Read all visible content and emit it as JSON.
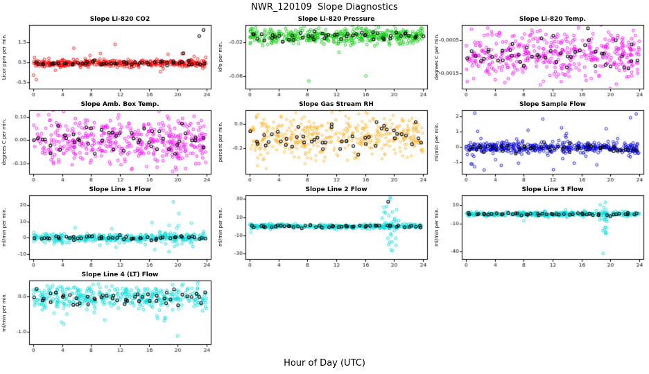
{
  "chart_data": {
    "type": "scatter",
    "title": "NWR_120109  Slope Diagnostics",
    "xlabel": "Hour of Day (UTC)",
    "x_ticks": [
      0,
      4,
      8,
      12,
      16,
      20,
      24
    ],
    "xlim": [
      -0.6,
      24.6
    ],
    "grid": false,
    "legend": "none",
    "marker_style": "open-circle, colored series with black overlay circles",
    "panels": [
      {
        "title": "Slope Li-820 CO2",
        "ylabel": "Licor ppm per min.",
        "color": "#ff0000",
        "ylim": [
          -0.8,
          2.35
        ],
        "ytick_vals": [
          -0.5,
          0.5,
          1.5
        ],
        "ytick_labels": [
          "-0.5",
          "0.5",
          "1.5"
        ],
        "n": 380,
        "center": 0.45,
        "spread": 0.09,
        "outlier_frac": 0.06,
        "outlier_spread": 0.3,
        "black_n": 48,
        "black_spread": 0.06,
        "outliers": [
          [
            21.5,
            0.55
          ],
          [
            23.9,
            0.75
          ],
          [
            0.4,
            -0.35
          ]
        ],
        "black_outliers": [
          [
            20.8,
            0.95
          ],
          [
            23.0,
            1.8
          ],
          [
            23.6,
            2.1
          ]
        ],
        "seed": 11
      },
      {
        "title": "Slope Li-820 Pressure",
        "ylabel": "kPa per min.",
        "color": "#00c800",
        "ylim": [
          -0.075,
          0.0
        ],
        "ytick_vals": [
          -0.06,
          -0.02
        ],
        "ytick_labels": [
          "-0.06",
          "-0.02"
        ],
        "n": 400,
        "center": -0.013,
        "spread": 0.0045,
        "outlier_frac": 0.04,
        "outlier_spread": 0.01,
        "black_n": 48,
        "black_spread": 0.003,
        "outliers": [
          [
            8.2,
            -0.066
          ],
          [
            16.1,
            -0.06
          ],
          [
            23.9,
            -0.004
          ],
          [
            0.3,
            -0.004
          ]
        ],
        "black_outliers": [],
        "seed": 22
      },
      {
        "title": "Slope Li-820 Temp.",
        "ylabel": "degrees C per min.",
        "color": "#ff00ff",
        "ylim": [
          -0.00195,
          -5e-05
        ],
        "ytick_vals": [
          -0.0015,
          -0.0005
        ],
        "ytick_labels": [
          "-0.0015",
          "-0.0005"
        ],
        "n": 420,
        "center": -0.00095,
        "spread": 0.00035,
        "outlier_frac": 0.03,
        "outlier_spread": 0.0007,
        "black_n": 48,
        "black_spread": 0.00025,
        "outliers": [],
        "black_outliers": [],
        "seed": 33
      },
      {
        "title": "Slope Amb. Box Temp.",
        "ylabel": "degrees C per min.",
        "color": "#ff00ff",
        "ylim": [
          -0.145,
          0.13
        ],
        "ytick_vals": [
          -0.1,
          0.0,
          0.1
        ],
        "ytick_labels": [
          "-0.10",
          "0.00",
          "0.10"
        ],
        "n": 430,
        "center": 0.0,
        "spread": 0.05,
        "outlier_frac": 0.04,
        "outlier_spread": 0.1,
        "black_n": 48,
        "black_spread": 0.03,
        "outliers": [],
        "black_outliers": [],
        "seed": 44
      },
      {
        "title": "Slope Gas Stream RH",
        "ylabel": "percent per min.",
        "color": "#ffa500",
        "marker": "diamond",
        "ylim": [
          -0.42,
          0.12
        ],
        "ytick_vals": [
          0.0,
          -0.2
        ],
        "ytick_labels": [
          "0.0",
          "-0.2"
        ],
        "n": 430,
        "center": -0.1,
        "spread": 0.09,
        "outlier_frac": 0.03,
        "outlier_spread": 0.18,
        "black_n": 48,
        "black_spread": 0.06,
        "outliers": [],
        "black_outliers": [],
        "seed": 55
      },
      {
        "title": "Slope Sample Flow",
        "ylabel": "ml/min per min.",
        "color": "#0000dd",
        "ylim": [
          -1.75,
          2.4
        ],
        "ytick_vals": [
          -1,
          0,
          1,
          2
        ],
        "ytick_labels": [
          "-1",
          "0",
          "1",
          "2"
        ],
        "n": 420,
        "center": -0.05,
        "spread": 0.18,
        "outlier_frac": 0.1,
        "outlier_spread": 0.8,
        "black_n": 48,
        "black_spread": 0.12,
        "outliers": [
          [
            1.2,
            2.2
          ],
          [
            23.6,
            2.15
          ],
          [
            22.8,
            1.9
          ],
          [
            2.5,
            -1.5
          ]
        ],
        "black_outliers": [],
        "seed": 66
      },
      {
        "title": "Slope Line 1 Flow",
        "ylabel": "ml/min per min.",
        "color": "#00dddd",
        "ylim": [
          -13,
          26
        ],
        "ytick_vals": [
          -10,
          0,
          10,
          20
        ],
        "ytick_labels": [
          "-10",
          "0",
          "10",
          "20"
        ],
        "n": 340,
        "center": 0,
        "spread": 1.2,
        "outlier_frac": 0.07,
        "outlier_spread": 4,
        "black_n": 48,
        "black_spread": 0.7,
        "cluster": {
          "x": 19.3,
          "xs": 0.7,
          "n": 14,
          "ys": 6
        },
        "outliers": [
          [
            19.4,
            22
          ],
          [
            18.8,
            -8.5
          ],
          [
            21.9,
            9
          ]
        ],
        "black_outliers": [],
        "seed": 77
      },
      {
        "title": "Slope Line 2 Flow",
        "ylabel": "ml/min per min.",
        "color": "#00dddd",
        "ylim": [
          -36,
          34
        ],
        "ytick_vals": [
          -30,
          -10,
          10,
          30
        ],
        "ytick_labels": [
          "-30",
          "-10",
          "10",
          "30"
        ],
        "n": 340,
        "center": 0,
        "spread": 1.2,
        "outlier_frac": 0.04,
        "outlier_spread": 3,
        "black_n": 48,
        "black_spread": 0.8,
        "cluster": {
          "x": 19.5,
          "xs": 0.6,
          "n": 30,
          "ys": 13
        },
        "outliers": [
          [
            19.8,
            -27
          ],
          [
            19.5,
            30
          ]
        ],
        "black_outliers": [
          [
            19.2,
            27
          ]
        ],
        "seed": 88
      },
      {
        "title": "Slope Line 3 Flow",
        "ylabel": "ml/min per min.",
        "color": "#00dddd",
        "ylim": [
          -48,
          20
        ],
        "ytick_vals": [
          -40,
          -10,
          10
        ],
        "ytick_labels": [
          "-40",
          "-10",
          "10"
        ],
        "n": 340,
        "center": 0,
        "spread": 1.3,
        "outlier_frac": 0.04,
        "outlier_spread": 3.5,
        "black_n": 48,
        "black_spread": 0.8,
        "cluster": {
          "x": 19.2,
          "xs": 0.5,
          "n": 22,
          "ys": 12,
          "cy": -8
        },
        "outliers": [
          [
            19.0,
            -42
          ],
          [
            19.3,
            12.5
          ]
        ],
        "black_outliers": [],
        "seed": 99
      },
      {
        "title": "Slope Line 4 (LT) Flow",
        "ylabel": "ml/min per min.",
        "color": "#00dddd",
        "ylim": [
          -1.35,
          0.45
        ],
        "ytick_vals": [
          -1.0,
          0.0
        ],
        "ytick_labels": [
          "-1.0",
          "0.0"
        ],
        "n": 380,
        "center": -0.02,
        "spread": 0.16,
        "outlier_frac": 0.08,
        "outlier_spread": 0.4,
        "black_n": 48,
        "black_spread": 0.1,
        "outliers": [
          [
            4.2,
            -0.78
          ],
          [
            17.2,
            -0.62
          ],
          [
            20.0,
            -1.12
          ],
          [
            9.0,
            0.35
          ]
        ],
        "black_outliers": [],
        "seed": 100
      }
    ]
  }
}
